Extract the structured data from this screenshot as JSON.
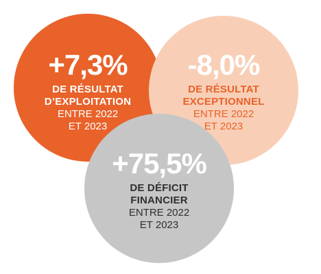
{
  "colors": {
    "orange": "#e8622a",
    "peach": "#f8cfb6",
    "gray": "#c6c6c6",
    "white": "#ffffff",
    "dark_text": "#2f2f2f"
  },
  "stats": [
    {
      "value": "+7,3%",
      "label_line1": "DE RÉSULTAT",
      "label_line2": "D’EXPLOITATION",
      "period_line1": "ENTRE 2022",
      "period_line2": "ET 2023"
    },
    {
      "value": "-8,0%",
      "label_line1": "DE RÉSULTAT",
      "label_line2": "EXCEPTIONNEL",
      "period_line1": "ENTRE 2022",
      "period_line2": "ET 2023"
    },
    {
      "value": "+75,5%",
      "label_line1": "DE DÉFICIT",
      "label_line2": "FINANCIER",
      "period_line1": "ENTRE 2022",
      "period_line2": "ET 2023"
    }
  ]
}
